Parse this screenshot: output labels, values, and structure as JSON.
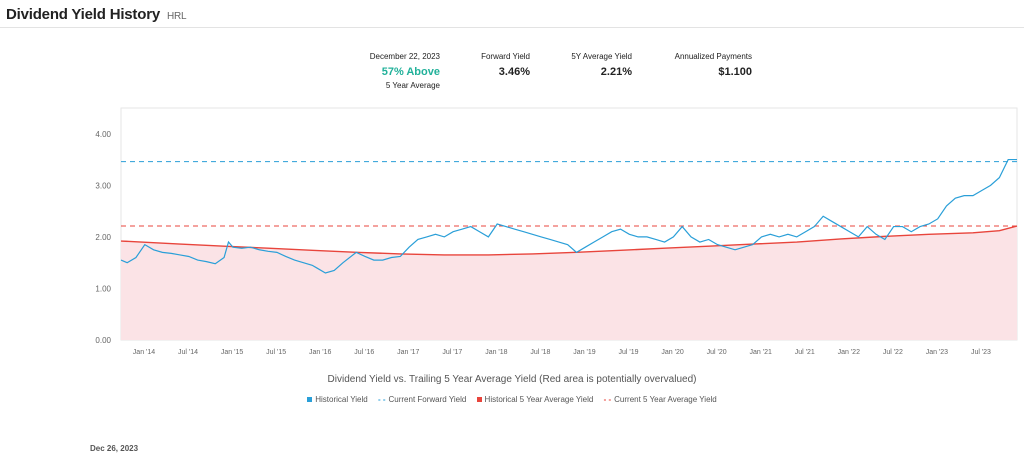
{
  "header": {
    "title": "Dividend Yield History",
    "ticker": "HRL"
  },
  "stats": {
    "date_label": "December 22, 2023",
    "above_value": "57% Above",
    "above_sub": "5 Year Average",
    "forward_label": "Forward Yield",
    "forward_value": "3.46%",
    "avg_label": "5Y Average Yield",
    "avg_value": "2.21%",
    "payments_label": "Annualized Payments",
    "payments_value": "$1.100"
  },
  "caption": "Dividend Yield vs. Trailing 5 Year Average Yield (Red area is potentially overvalued)",
  "legend": [
    {
      "label": "Historical Yield",
      "marker": "square",
      "color": "#2a9fd8"
    },
    {
      "label": "Current Forward Yield",
      "marker": "dash",
      "color": "#2a9fd8"
    },
    {
      "label": "Historical 5 Year Average Yield",
      "marker": "square",
      "color": "#e8453c"
    },
    {
      "label": "Current 5 Year Average Yield",
      "marker": "dash",
      "color": "#e8453c"
    }
  ],
  "footer_date": "Dec 26, 2023",
  "colors": {
    "historical": "#2a9fd8",
    "average": "#e8453c",
    "area": "#fbe3e6",
    "accent_green": "#21b19a"
  },
  "chart_data": {
    "type": "line",
    "title": "",
    "xlabel": "",
    "ylabel": "",
    "xlim": [
      2013.83,
      2024.0
    ],
    "ylim": [
      0,
      4.5
    ],
    "yticks": [
      0.0,
      1.0,
      2.0,
      3.0,
      4.0
    ],
    "ytick_labels": [
      "0.00",
      "1.00",
      "2.00",
      "3.00",
      "4.00"
    ],
    "xticks": [
      2014.0,
      2014.5,
      2015.0,
      2015.5,
      2016.0,
      2016.5,
      2017.0,
      2017.5,
      2018.0,
      2018.5,
      2019.0,
      2019.5,
      2020.0,
      2020.5,
      2021.0,
      2021.5,
      2022.0,
      2022.5,
      2023.0,
      2023.5
    ],
    "xtick_labels": [
      "Jan '14",
      "Jul '14",
      "Jan '15",
      "Jul '15",
      "Jan '16",
      "Jul '16",
      "Jan '17",
      "Jul '17",
      "Jan '18",
      "Jul '18",
      "Jan '19",
      "Jul '19",
      "Jan '20",
      "Jul '20",
      "Jan '21",
      "Jul '21",
      "Jan '22",
      "Jul '22",
      "Jan '23",
      "Jul '23"
    ],
    "grid": false,
    "legend_position": "bottom",
    "series": [
      {
        "name": "Historical Yield",
        "x": [
          2013.83,
          2013.9,
          2014.0,
          2014.1,
          2014.2,
          2014.3,
          2014.4,
          2014.5,
          2014.6,
          2014.7,
          2014.8,
          2014.9,
          2015.0,
          2015.05,
          2015.1,
          2015.2,
          2015.3,
          2015.4,
          2015.5,
          2015.6,
          2015.7,
          2015.8,
          2015.9,
          2016.0,
          2016.05,
          2016.15,
          2016.25,
          2016.35,
          2016.5,
          2016.6,
          2016.7,
          2016.8,
          2016.9,
          2017.0,
          2017.1,
          2017.2,
          2017.3,
          2017.4,
          2017.5,
          2017.6,
          2017.7,
          2017.8,
          2017.9,
          2018.0,
          2018.1,
          2018.2,
          2018.3,
          2018.4,
          2018.5,
          2018.6,
          2018.7,
          2018.8,
          2018.9,
          2019.0,
          2019.1,
          2019.2,
          2019.3,
          2019.4,
          2019.5,
          2019.6,
          2019.7,
          2019.8,
          2019.9,
          2020.0,
          2020.1,
          2020.2,
          2020.3,
          2020.4,
          2020.5,
          2020.6,
          2020.7,
          2020.8,
          2020.9,
          2021.0,
          2021.1,
          2021.2,
          2021.3,
          2021.4,
          2021.5,
          2021.6,
          2021.7,
          2021.8,
          2021.9,
          2022.0,
          2022.1,
          2022.2,
          2022.3,
          2022.4,
          2022.5,
          2022.6,
          2022.7,
          2022.8,
          2022.9,
          2023.0,
          2023.1,
          2023.2,
          2023.3,
          2023.4,
          2023.5,
          2023.6,
          2023.7,
          2023.8,
          2023.9,
          2024.0
        ],
        "values": [
          1.55,
          1.5,
          1.6,
          1.85,
          1.75,
          1.7,
          1.68,
          1.65,
          1.62,
          1.55,
          1.52,
          1.48,
          1.6,
          1.9,
          1.8,
          1.78,
          1.8,
          1.75,
          1.72,
          1.7,
          1.62,
          1.55,
          1.5,
          1.45,
          1.4,
          1.3,
          1.35,
          1.5,
          1.7,
          1.62,
          1.55,
          1.55,
          1.6,
          1.62,
          1.8,
          1.95,
          2.0,
          2.05,
          2.0,
          2.1,
          2.15,
          2.2,
          2.1,
          2.0,
          2.25,
          2.2,
          2.15,
          2.1,
          2.05,
          2.0,
          1.95,
          1.9,
          1.85,
          1.7,
          1.8,
          1.9,
          2.0,
          2.1,
          2.15,
          2.05,
          2.0,
          2.0,
          1.95,
          1.9,
          2.0,
          2.2,
          2.0,
          1.9,
          1.95,
          1.85,
          1.8,
          1.75,
          1.8,
          1.85,
          2.0,
          2.05,
          2.0,
          2.05,
          2.0,
          2.1,
          2.2,
          2.4,
          2.3,
          2.2,
          2.1,
          2.0,
          2.2,
          2.05,
          1.95,
          2.2,
          2.2,
          2.1,
          2.2,
          2.25,
          2.35,
          2.6,
          2.75,
          2.8,
          2.8,
          2.9,
          3.0,
          3.15,
          3.5,
          3.5
        ]
      },
      {
        "name": "Historical 5 Year Average Yield",
        "x": [
          2013.83,
          2014.5,
          2015.0,
          2015.5,
          2016.0,
          2016.5,
          2017.0,
          2017.5,
          2018.0,
          2018.5,
          2019.0,
          2019.5,
          2020.0,
          2020.5,
          2021.0,
          2021.5,
          2022.0,
          2022.5,
          2023.0,
          2023.5,
          2023.8,
          2024.0
        ],
        "values": [
          1.92,
          1.86,
          1.82,
          1.78,
          1.74,
          1.7,
          1.67,
          1.65,
          1.65,
          1.67,
          1.7,
          1.74,
          1.78,
          1.82,
          1.86,
          1.9,
          1.96,
          2.01,
          2.05,
          2.08,
          2.12,
          2.21
        ]
      },
      {
        "name": "Current Forward Yield",
        "value": 3.46
      },
      {
        "name": "Current 5 Year Average Yield",
        "value": 2.21
      }
    ]
  }
}
